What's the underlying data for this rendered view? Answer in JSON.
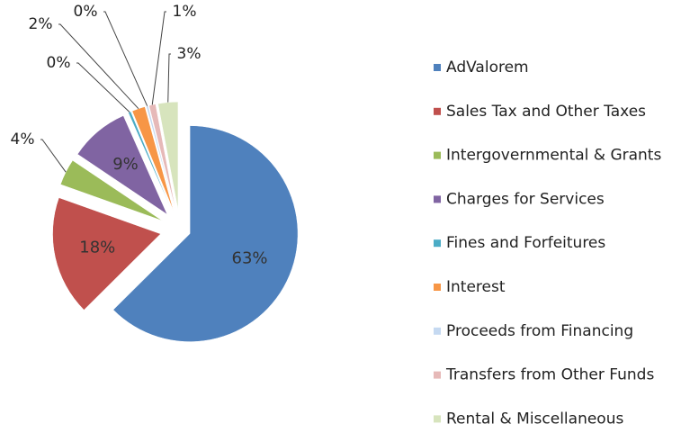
{
  "chart_data": {
    "type": "pie",
    "categories": [
      "AdValorem",
      "Sales Tax and Other Taxes",
      "Intergovernmental & Grants",
      "Charges for Services",
      "Fines and Forfeitures",
      "Interest",
      "Proceeds from Financing",
      "Transfers from Other Funds",
      "Rental & Miscellaneous"
    ],
    "values": [
      63,
      18,
      4,
      9,
      0.4,
      2,
      0.3,
      1,
      3
    ],
    "value_labels": [
      "63%",
      "18%",
      "4%",
      "9%",
      "0%",
      "2%",
      "0%",
      "1%",
      "3%"
    ],
    "colors": [
      "#4f81bd",
      "#c0504d",
      "#9bbb59",
      "#8064a2",
      "#4bacc6",
      "#f79646",
      "#c5d9f1",
      "#e6b9b8",
      "#d7e4bd"
    ],
    "legend": "right"
  }
}
